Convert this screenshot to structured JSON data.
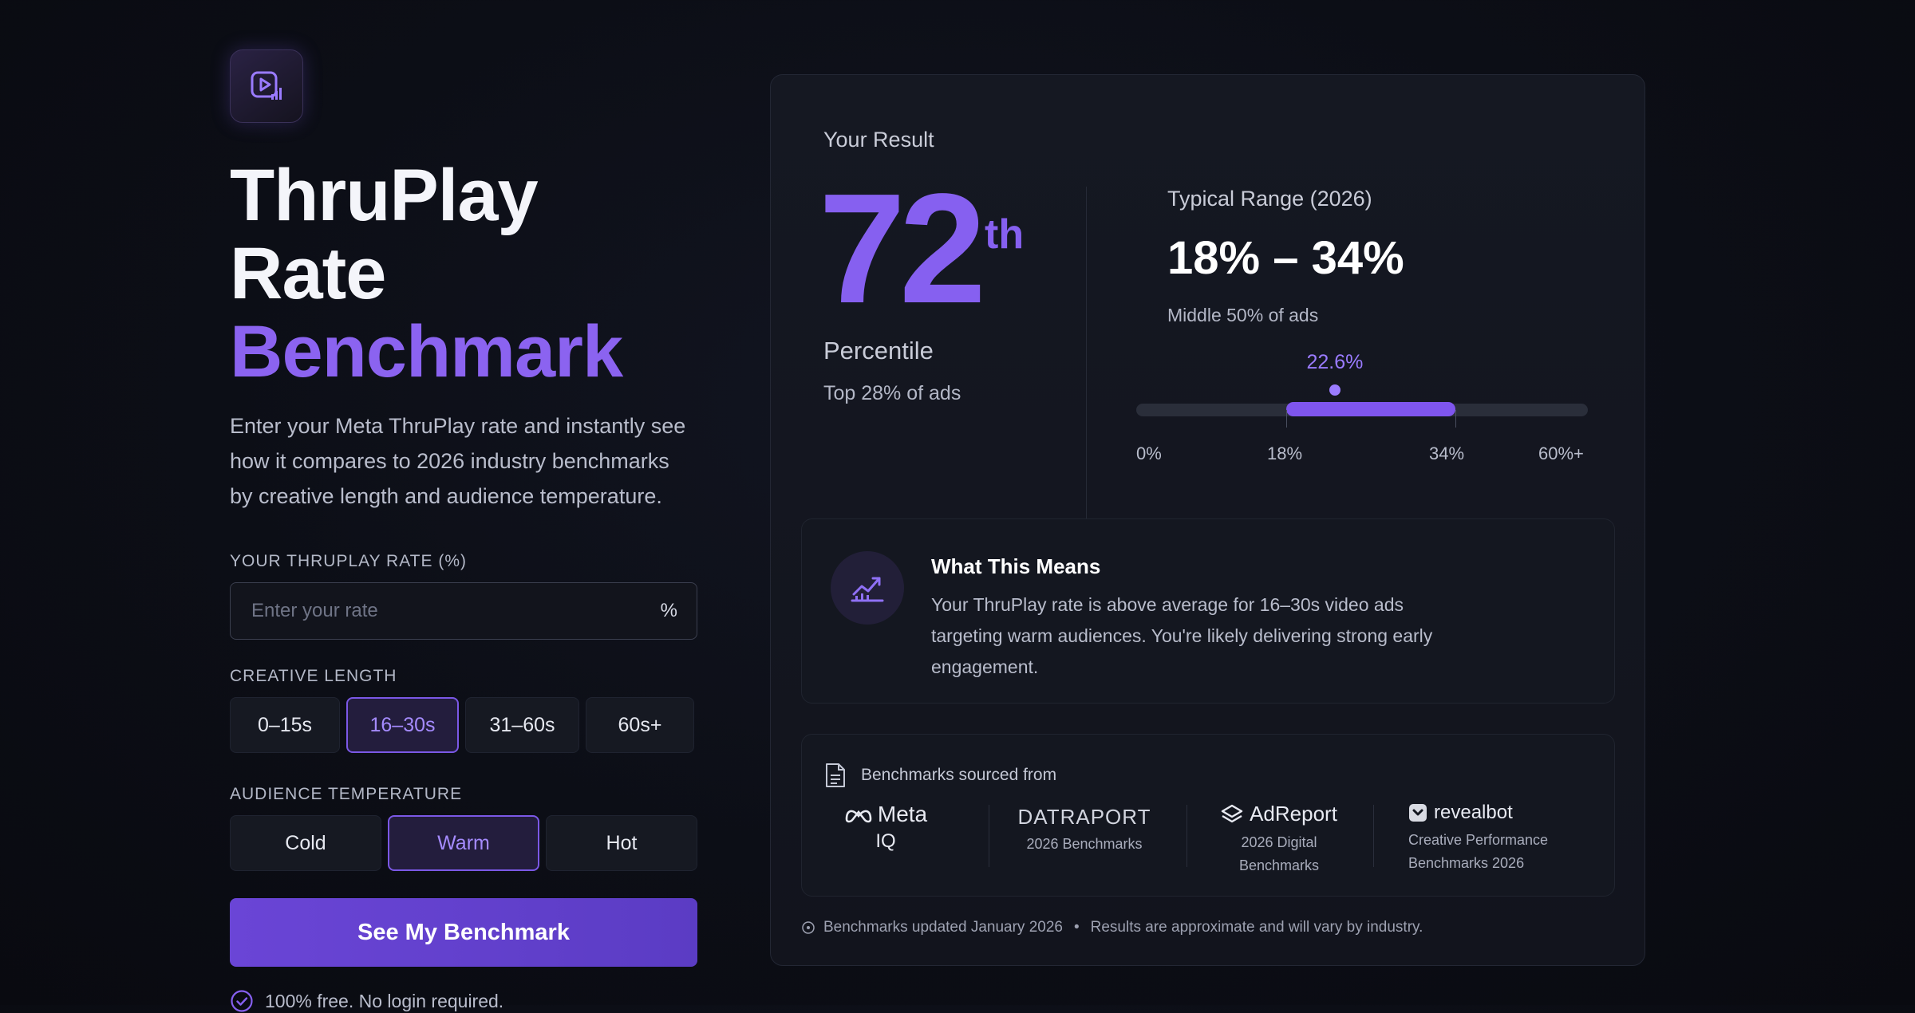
{
  "hero": {
    "title_line1": "ThruPlay Rate",
    "title_line2": "Benchmark",
    "description": "Enter your Meta ThruPlay rate and instantly see how it compares to 2026 industry benchmarks by creative length and audience temperature."
  },
  "form": {
    "rate_label": "YOUR THRUPLAY RATE (%)",
    "rate_placeholder": "Enter your rate",
    "rate_value": "",
    "rate_unit": "%",
    "length_label": "CREATIVE LENGTH",
    "length_options": [
      "0–15s",
      "16–30s",
      "31–60s",
      "60s+"
    ],
    "length_selected": "16–30s",
    "temperature_label": "AUDIENCE TEMPERATURE",
    "temperature_options": [
      "Cold",
      "Warm",
      "Hot"
    ],
    "temperature_selected": "Warm",
    "submit_label": "See My Benchmark",
    "free_note": "100% free. No login required."
  },
  "result": {
    "heading": "Your Result",
    "percentile_number": "72",
    "percentile_suffix": "th",
    "percentile_label": "Percentile",
    "top_text": "Top 28% of ads",
    "range_label": "Typical Range (2026)",
    "range_value": "18% – 34%",
    "range_sub": "Middle 50% of ads",
    "marker_label": "22.6%",
    "scale": {
      "min": 0,
      "max": 60,
      "range_low": 18,
      "range_high": 34,
      "marker": 22.6,
      "ticks": [
        "0%",
        "18%",
        "34%",
        "60%+"
      ]
    }
  },
  "means": {
    "title": "What This Means",
    "text": "Your ThruPlay rate is above average for 16–30s video ads targeting warm audiences. You're likely delivering strong early engagement."
  },
  "sources": {
    "heading": "Benchmarks sourced from",
    "items": [
      {
        "name": "Meta",
        "sub": "IQ"
      },
      {
        "name": "DATRAPORT",
        "sub": "2026 Benchmarks"
      },
      {
        "name": "AdReport",
        "sub": "2026 Digital Benchmarks"
      },
      {
        "name": "revealbot",
        "sub": "Creative Performance Benchmarks 2026"
      }
    ]
  },
  "footer": {
    "updated": "Benchmarks updated January 2026",
    "separator": "•",
    "disclaimer": "Results are approximate and will vary by industry."
  },
  "colors": {
    "accent": "#8660f0",
    "background": "#0c0e16",
    "card": "#151822"
  }
}
